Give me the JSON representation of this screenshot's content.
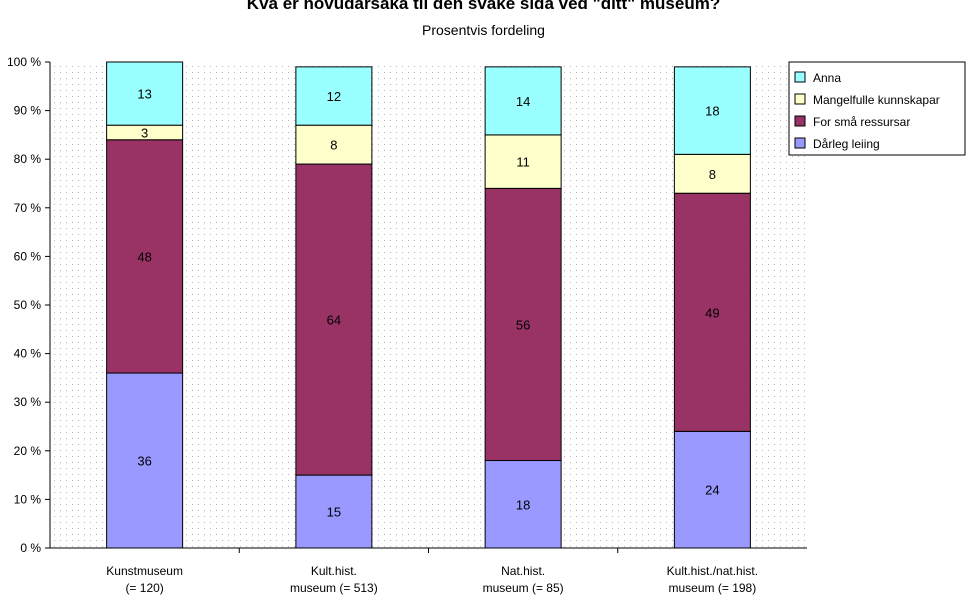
{
  "chart_data": {
    "type": "bar",
    "stacked": true,
    "title": "Kva er hovudårsaka til den svake sida ved \"ditt\" museum?",
    "subtitle": "Prosentvis fordeling",
    "categories": [
      [
        "Kunstmuseum",
        "(= 120)"
      ],
      [
        "Kult.hist.",
        "museum (= 513)"
      ],
      [
        "Nat.hist.",
        "museum (= 85)"
      ],
      [
        "Kult.hist./nat.hist.",
        "museum (= 198)"
      ]
    ],
    "series": [
      {
        "name": "Dårleg leiing",
        "color": "#9999ff",
        "values": [
          36,
          15,
          18,
          24
        ]
      },
      {
        "name": "For små ressursar",
        "color": "#993366",
        "values": [
          48,
          64,
          56,
          49
        ]
      },
      {
        "name": "Mangelfulle kunnskapar",
        "color": "#ffffcc",
        "values": [
          3,
          8,
          11,
          8
        ]
      },
      {
        "name": "Anna",
        "color": "#99ffff",
        "values": [
          13,
          12,
          14,
          18
        ]
      }
    ],
    "legend_order": [
      "Anna",
      "Mangelfulle kunnskapar",
      "For små ressursar",
      "Dårleg leiing"
    ],
    "y_ticks": [
      "0 %",
      "10 %",
      "20 %",
      "30 %",
      "40 %",
      "50 %",
      "60 %",
      "70 %",
      "80 %",
      "90 %",
      "100 %"
    ],
    "ylim": [
      0,
      100
    ],
    "grid": "dotted",
    "legend_position": "top-right"
  }
}
